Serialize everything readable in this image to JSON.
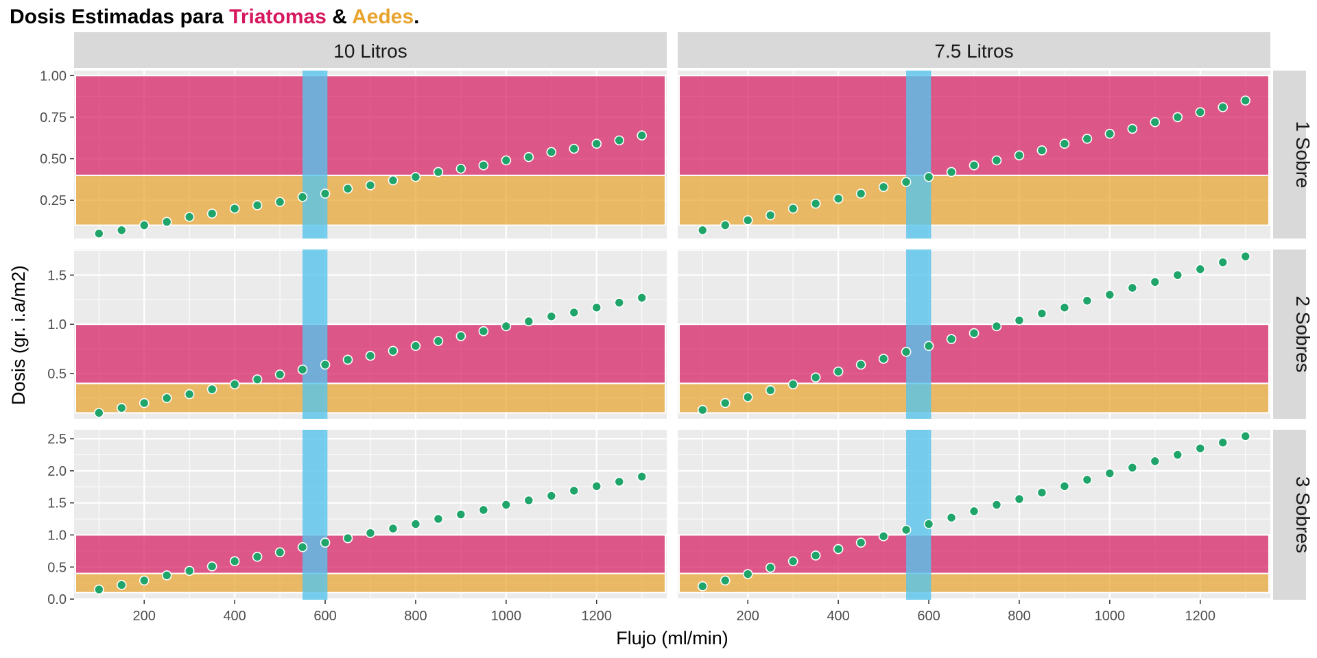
{
  "title": {
    "prefix": "Dosis Estimadas para ",
    "triatomas": "Triatomas",
    "amp": " & ",
    "aedes": "Aedes",
    "suffix": ".",
    "triatomas_color": "#D6185E",
    "aedes_color": "#E8A32C"
  },
  "chart_data": {
    "type": "scatter",
    "xlabel": "Flujo (ml/min)",
    "ylabel": "Dosis (gr. i.a/m2)",
    "xlim": [
      45,
      1355
    ],
    "x_ticks": [
      200,
      400,
      600,
      800,
      1000,
      1200
    ],
    "columns": [
      "10 Litros",
      "7.5 Litros"
    ],
    "rows": [
      {
        "label": "1 Sobre",
        "ylim": [
          0.02,
          1.03
        ],
        "y_ticks": [
          0.25,
          0.5,
          0.75,
          1.0
        ],
        "y_tick_labels": [
          "0.25",
          "0.50",
          "0.75",
          "1.00"
        ]
      },
      {
        "label": "2 Sobres",
        "ylim": [
          0.04,
          1.76
        ],
        "y_ticks": [
          0.5,
          1.0,
          1.5
        ],
        "y_tick_labels": [
          "0.5",
          "1.0",
          "1.5"
        ]
      },
      {
        "label": "3 Sobres",
        "ylim": [
          -0.01,
          2.64
        ],
        "y_ticks": [
          0.0,
          0.5,
          1.0,
          1.5,
          2.0,
          2.5
        ],
        "y_tick_labels": [
          "0.0",
          "0.5",
          "1.0",
          "1.5",
          "2.0",
          "2.5"
        ]
      }
    ],
    "x": [
      100,
      150,
      200,
      250,
      300,
      350,
      400,
      450,
      500,
      550,
      600,
      650,
      700,
      750,
      800,
      850,
      900,
      950,
      1000,
      1050,
      1100,
      1150,
      1200,
      1250,
      1300
    ],
    "panels": [
      {
        "row": "1 Sobre",
        "column": "10 Litros",
        "values": [
          0.05,
          0.07,
          0.1,
          0.12,
          0.15,
          0.17,
          0.2,
          0.22,
          0.24,
          0.27,
          0.29,
          0.32,
          0.34,
          0.37,
          0.39,
          0.42,
          0.44,
          0.46,
          0.49,
          0.51,
          0.54,
          0.56,
          0.59,
          0.61,
          0.64
        ]
      },
      {
        "row": "1 Sobre",
        "column": "7.5 Litros",
        "values": [
          0.07,
          0.1,
          0.13,
          0.16,
          0.2,
          0.23,
          0.26,
          0.29,
          0.33,
          0.36,
          0.39,
          0.42,
          0.46,
          0.49,
          0.52,
          0.55,
          0.59,
          0.62,
          0.65,
          0.68,
          0.72,
          0.75,
          0.78,
          0.81,
          0.85
        ]
      },
      {
        "row": "2 Sobres",
        "column": "10 Litros",
        "values": [
          0.1,
          0.15,
          0.2,
          0.25,
          0.29,
          0.34,
          0.39,
          0.44,
          0.49,
          0.54,
          0.59,
          0.64,
          0.68,
          0.73,
          0.78,
          0.83,
          0.88,
          0.93,
          0.98,
          1.03,
          1.08,
          1.12,
          1.17,
          1.22,
          1.27
        ]
      },
      {
        "row": "2 Sobres",
        "column": "7.5 Litros",
        "values": [
          0.13,
          0.2,
          0.26,
          0.33,
          0.39,
          0.46,
          0.52,
          0.59,
          0.65,
          0.72,
          0.78,
          0.85,
          0.91,
          0.98,
          1.04,
          1.11,
          1.17,
          1.24,
          1.3,
          1.37,
          1.43,
          1.5,
          1.56,
          1.63,
          1.69
        ]
      },
      {
        "row": "3 Sobres",
        "column": "10 Litros",
        "values": [
          0.15,
          0.22,
          0.29,
          0.37,
          0.44,
          0.51,
          0.59,
          0.66,
          0.73,
          0.81,
          0.88,
          0.95,
          1.03,
          1.1,
          1.17,
          1.25,
          1.32,
          1.39,
          1.47,
          1.54,
          1.61,
          1.69,
          1.76,
          1.83,
          1.91
        ]
      },
      {
        "row": "3 Sobres",
        "column": "7.5 Litros",
        "values": [
          0.2,
          0.29,
          0.39,
          0.49,
          0.59,
          0.68,
          0.78,
          0.88,
          0.98,
          1.08,
          1.17,
          1.27,
          1.37,
          1.47,
          1.56,
          1.66,
          1.76,
          1.86,
          1.96,
          2.05,
          2.15,
          2.25,
          2.35,
          2.44,
          2.54
        ]
      }
    ],
    "bands": {
      "triatomas": {
        "y_range": [
          0.4,
          1.0
        ],
        "color": "#D6185E"
      },
      "aedes": {
        "y_range": [
          0.1,
          0.4
        ],
        "color": "#E8A32C"
      },
      "flow_range": {
        "x_range": [
          550,
          605
        ],
        "color": "#56C3EB"
      }
    },
    "point_color": "#1FA46A",
    "grid": true,
    "legend": "none"
  }
}
